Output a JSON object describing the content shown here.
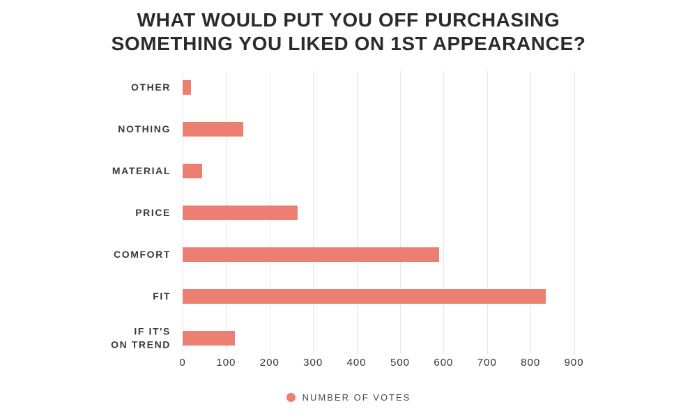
{
  "title": {
    "text": "WHAT WOULD PUT YOU OFF PURCHASING\nSOMETHING YOU LIKED ON 1ST APPEARANCE?"
  },
  "legend": {
    "label": "NUMBER OF VOTES"
  },
  "colors": {
    "bar": "#ed7f72",
    "gridline": "#e6e6e6",
    "title_text": "#2b2b2b",
    "label_text": "#3a3a3a"
  },
  "chart_data": {
    "type": "bar",
    "orientation": "horizontal",
    "title": "WHAT WOULD PUT YOU OFF PURCHASING SOMETHING YOU LIKED ON 1ST APPEARANCE?",
    "series_name": "NUMBER OF VOTES",
    "categories": [
      "OTHER",
      "NOTHING",
      "MATERIAL",
      "PRICE",
      "COMFORT",
      "FIT",
      "IF IT'S\nON TREND"
    ],
    "values": [
      20,
      140,
      45,
      265,
      590,
      835,
      120
    ],
    "xlabel": "",
    "ylabel": "",
    "xticks": [
      0,
      100,
      200,
      300,
      400,
      500,
      600,
      700,
      800,
      900
    ],
    "xlim": [
      0,
      975
    ],
    "grid": true,
    "legend_position": "bottom"
  }
}
